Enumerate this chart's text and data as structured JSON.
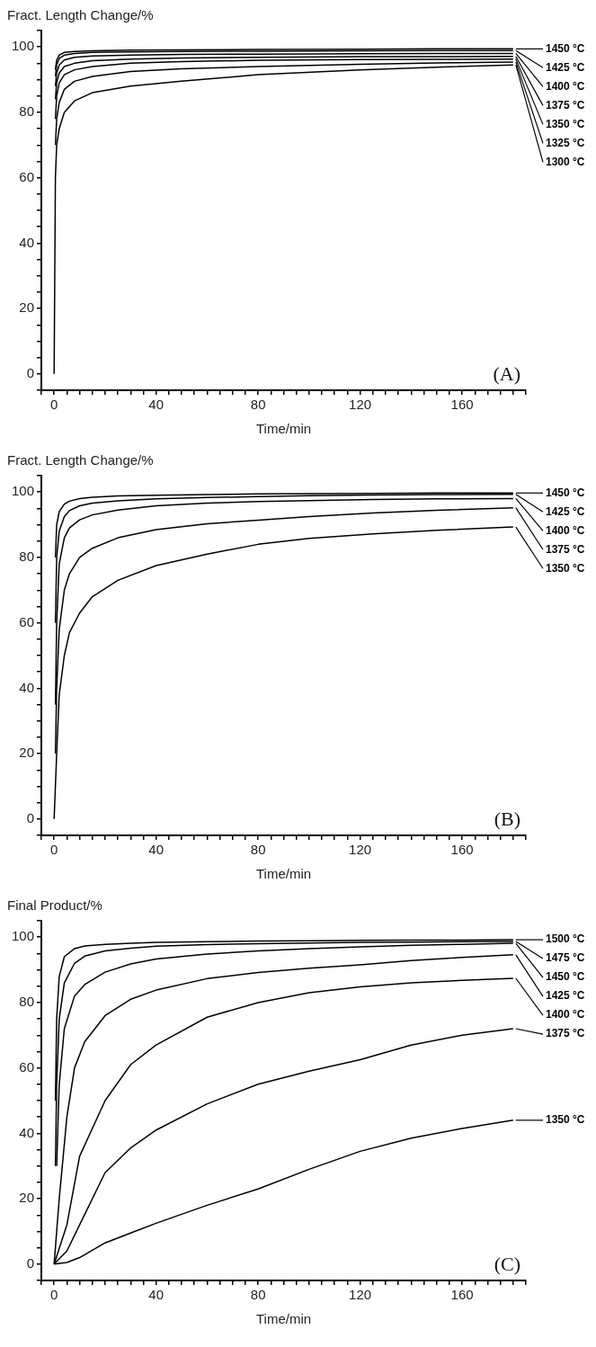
{
  "chart_data": [
    {
      "type": "line",
      "ylabel": "Fract. Length Change/%",
      "xlabel": "Time/min",
      "annotations": [
        "(A)"
      ],
      "xlim": [
        -5,
        185
      ],
      "ylim": [
        -5,
        105
      ],
      "xticks": [
        {
          "value": -5,
          "label": null
        },
        0,
        {
          "value": 5,
          "label": null
        },
        {
          "value": 10,
          "label": null
        },
        {
          "value": 15,
          "label": null
        },
        {
          "value": 20,
          "label": null
        },
        {
          "value": 25,
          "label": null
        },
        {
          "value": 30,
          "label": null
        },
        {
          "value": 35,
          "label": null
        },
        40,
        {
          "value": 45,
          "label": null
        },
        {
          "value": 50,
          "label": null
        },
        {
          "value": 55,
          "label": null
        },
        {
          "value": 60,
          "label": null
        },
        {
          "value": 65,
          "label": null
        },
        {
          "value": 70,
          "label": null
        },
        {
          "value": 75,
          "label": null
        },
        80,
        {
          "value": 85,
          "label": null
        },
        {
          "value": 90,
          "label": null
        },
        {
          "value": 95,
          "label": null
        },
        {
          "value": 100,
          "label": null
        },
        {
          "value": 105,
          "label": null
        },
        {
          "value": 110,
          "label": null
        },
        {
          "value": 115,
          "label": null
        },
        120,
        {
          "value": 125,
          "label": null
        },
        {
          "value": 130,
          "label": null
        },
        {
          "value": 135,
          "label": null
        },
        {
          "value": 140,
          "label": null
        },
        {
          "value": 145,
          "label": null
        },
        {
          "value": 150,
          "label": null
        },
        {
          "value": 155,
          "label": null
        },
        160,
        {
          "value": 165,
          "label": null
        },
        {
          "value": 170,
          "label": null
        },
        {
          "value": 175,
          "label": null
        },
        {
          "value": 180,
          "label": null
        },
        {
          "value": 185,
          "label": null
        }
      ],
      "yticks": [
        {
          "value": -5,
          "label": null
        },
        0,
        {
          "value": 5,
          "label": null
        },
        {
          "value": 10,
          "label": null
        },
        {
          "value": 15,
          "label": null
        },
        20,
        {
          "value": 25,
          "label": null
        },
        {
          "value": 30,
          "label": null
        },
        {
          "value": 35,
          "label": null
        },
        40,
        {
          "value": 45,
          "label": null
        },
        {
          "value": 50,
          "label": null
        },
        {
          "value": 55,
          "label": null
        },
        60,
        {
          "value": 65,
          "label": null
        },
        {
          "value": 70,
          "label": null
        },
        {
          "value": 75,
          "label": null
        },
        80,
        {
          "value": 85,
          "label": null
        },
        {
          "value": 90,
          "label": null
        },
        {
          "value": 95,
          "label": null
        },
        100,
        {
          "value": 105,
          "label": null
        }
      ],
      "grid": false,
      "legend": "right",
      "line_style": "solid",
      "x": [
        0,
        0.5,
        1,
        2,
        4,
        8,
        15,
        30,
        50,
        80,
        120,
        150,
        180
      ],
      "series": [
        {
          "name": "1450 °C",
          "color": "#000000",
          "x": [
            0.5,
            1,
            2,
            4,
            8,
            15,
            30,
            50,
            80,
            120,
            150,
            180
          ],
          "values": [
            93,
            96,
            97.5,
            98.3,
            98.6,
            98.8,
            99,
            99.1,
            99.2,
            99.3,
            99.4,
            99.4
          ]
        },
        {
          "name": "1425 °C",
          "color": "#000000",
          "x": [
            0.5,
            1,
            2,
            4,
            8,
            15,
            30,
            50,
            80,
            120,
            150,
            180
          ],
          "values": [
            91,
            94.5,
            96.5,
            97.5,
            98,
            98.3,
            98.5,
            98.6,
            98.7,
            98.8,
            98.9,
            98.9
          ]
        },
        {
          "name": "1400 °C",
          "color": "#000000",
          "x": [
            0.5,
            1,
            2,
            4,
            8,
            15,
            30,
            50,
            80,
            120,
            150,
            180
          ],
          "values": [
            88,
            92,
            94.5,
            96,
            96.8,
            97.2,
            97.5,
            97.7,
            97.8,
            97.9,
            98,
            98
          ]
        },
        {
          "name": "1375 °C",
          "color": "#000000",
          "x": [
            0.5,
            1,
            2,
            4,
            8,
            15,
            30,
            50,
            80,
            120,
            150,
            180
          ],
          "values": [
            84,
            89,
            92,
            94,
            95,
            95.8,
            96.3,
            96.6,
            96.8,
            97,
            97,
            97.1
          ]
        },
        {
          "name": "1350 °C",
          "color": "#000000",
          "x": [
            0.5,
            1,
            2,
            4,
            8,
            15,
            30,
            50,
            80,
            120,
            150,
            180
          ],
          "values": [
            78,
            85,
            89,
            91.5,
            93,
            94,
            95,
            95.5,
            95.9,
            96.1,
            96.2,
            96.3
          ]
        },
        {
          "name": "1325 °C",
          "color": "#000000",
          "x": [
            0.5,
            1,
            2,
            4,
            8,
            15,
            30,
            50,
            80,
            120,
            150,
            180
          ],
          "values": [
            70,
            78,
            83,
            87,
            89.5,
            91,
            92.5,
            93.3,
            94,
            94.7,
            95.1,
            95.4
          ]
        },
        {
          "name": "1300 °C",
          "color": "#000000",
          "values": [
            0,
            60,
            70,
            75,
            80,
            83.5,
            86,
            88,
            89.5,
            91.5,
            93,
            93.8,
            94.5
          ]
        }
      ]
    },
    {
      "type": "line",
      "ylabel": "Fract. Length Change/%",
      "xlabel": "Time/min",
      "annotations": [
        "(B)"
      ],
      "xlim": [
        -5,
        185
      ],
      "ylim": [
        -5,
        105
      ],
      "xticks": [
        {
          "value": -5,
          "label": null
        },
        0,
        {
          "value": 5,
          "label": null
        },
        {
          "value": 10,
          "label": null
        },
        {
          "value": 15,
          "label": null
        },
        {
          "value": 20,
          "label": null
        },
        {
          "value": 25,
          "label": null
        },
        {
          "value": 30,
          "label": null
        },
        {
          "value": 35,
          "label": null
        },
        40,
        {
          "value": 45,
          "label": null
        },
        {
          "value": 50,
          "label": null
        },
        {
          "value": 55,
          "label": null
        },
        {
          "value": 60,
          "label": null
        },
        {
          "value": 65,
          "label": null
        },
        {
          "value": 70,
          "label": null
        },
        {
          "value": 75,
          "label": null
        },
        80,
        {
          "value": 85,
          "label": null
        },
        {
          "value": 90,
          "label": null
        },
        {
          "value": 95,
          "label": null
        },
        {
          "value": 100,
          "label": null
        },
        {
          "value": 105,
          "label": null
        },
        {
          "value": 110,
          "label": null
        },
        {
          "value": 115,
          "label": null
        },
        120,
        {
          "value": 125,
          "label": null
        },
        {
          "value": 130,
          "label": null
        },
        {
          "value": 135,
          "label": null
        },
        {
          "value": 140,
          "label": null
        },
        {
          "value": 145,
          "label": null
        },
        {
          "value": 150,
          "label": null
        },
        {
          "value": 155,
          "label": null
        },
        160,
        {
          "value": 165,
          "label": null
        },
        {
          "value": 170,
          "label": null
        },
        {
          "value": 175,
          "label": null
        },
        {
          "value": 180,
          "label": null
        },
        {
          "value": 185,
          "label": null
        }
      ],
      "yticks": [
        {
          "value": -5,
          "label": null
        },
        0,
        {
          "value": 5,
          "label": null
        },
        {
          "value": 10,
          "label": null
        },
        {
          "value": 15,
          "label": null
        },
        20,
        {
          "value": 25,
          "label": null
        },
        {
          "value": 30,
          "label": null
        },
        {
          "value": 35,
          "label": null
        },
        40,
        {
          "value": 45,
          "label": null
        },
        {
          "value": 50,
          "label": null
        },
        {
          "value": 55,
          "label": null
        },
        60,
        {
          "value": 65,
          "label": null
        },
        {
          "value": 70,
          "label": null
        },
        {
          "value": 75,
          "label": null
        },
        80,
        {
          "value": 85,
          "label": null
        },
        {
          "value": 90,
          "label": null
        },
        {
          "value": 95,
          "label": null
        },
        100,
        {
          "value": 105,
          "label": null
        }
      ],
      "grid": false,
      "legend": "right",
      "line_style": "solid",
      "x": [
        0,
        0.5,
        1,
        2,
        4,
        6,
        10,
        15,
        25,
        40,
        60,
        80,
        100,
        125,
        150,
        180
      ],
      "series": [
        {
          "name": "1450 °C",
          "color": "#000000",
          "x": [
            0.5,
            1,
            2,
            4,
            6,
            10,
            15,
            25,
            40,
            60,
            80,
            100,
            125,
            150,
            180
          ],
          "values": [
            80,
            90,
            94,
            96.3,
            97.2,
            98,
            98.4,
            98.8,
            99,
            99.2,
            99.4,
            99.5,
            99.6,
            99.7,
            99.7
          ]
        },
        {
          "name": "1425 °C",
          "color": "#000000",
          "x": [
            0.5,
            1,
            2,
            4,
            6,
            10,
            15,
            25,
            40,
            60,
            80,
            100,
            125,
            150,
            180
          ],
          "values": [
            60,
            80,
            88,
            92.5,
            94.3,
            95.8,
            96.6,
            97.3,
            97.9,
            98.3,
            98.6,
            98.9,
            99.1,
            99.2,
            99.3
          ]
        },
        {
          "name": "1400 °C",
          "color": "#000000",
          "x": [
            0.5,
            1,
            2,
            4,
            6,
            10,
            15,
            25,
            40,
            60,
            80,
            100,
            125,
            150,
            180
          ],
          "values": [
            35,
            60,
            78,
            86,
            89,
            91.5,
            93,
            94.5,
            95.8,
            96.6,
            97.1,
            97.4,
            97.7,
            97.9,
            98
          ]
        },
        {
          "name": "1375 °C",
          "color": "#000000",
          "x": [
            0.5,
            1,
            2,
            4,
            6,
            10,
            15,
            25,
            40,
            60,
            80,
            100,
            125,
            150,
            180
          ],
          "values": [
            20,
            40,
            58,
            70,
            75,
            80,
            82.8,
            86,
            88.5,
            90.3,
            91.4,
            92.5,
            93.6,
            94.4,
            95.2
          ]
        },
        {
          "name": "1350 °C",
          "color": "#000000",
          "values": [
            0,
            10,
            20,
            38,
            50,
            57,
            63,
            68,
            73,
            77.5,
            81,
            84,
            85.8,
            87.2,
            88.3,
            89.3
          ]
        }
      ]
    },
    {
      "type": "line",
      "ylabel": "Final Product/%",
      "xlabel": "Time/min",
      "annotations": [
        "(C)"
      ],
      "xlim": [
        -5,
        185
      ],
      "ylim": [
        -5,
        105
      ],
      "xticks": [
        {
          "value": -5,
          "label": null
        },
        0,
        {
          "value": 5,
          "label": null
        },
        {
          "value": 10,
          "label": null
        },
        {
          "value": 15,
          "label": null
        },
        {
          "value": 20,
          "label": null
        },
        {
          "value": 25,
          "label": null
        },
        {
          "value": 30,
          "label": null
        },
        {
          "value": 35,
          "label": null
        },
        40,
        {
          "value": 45,
          "label": null
        },
        {
          "value": 50,
          "label": null
        },
        {
          "value": 55,
          "label": null
        },
        {
          "value": 60,
          "label": null
        },
        {
          "value": 65,
          "label": null
        },
        {
          "value": 70,
          "label": null
        },
        {
          "value": 75,
          "label": null
        },
        80,
        {
          "value": 85,
          "label": null
        },
        {
          "value": 90,
          "label": null
        },
        {
          "value": 95,
          "label": null
        },
        {
          "value": 100,
          "label": null
        },
        {
          "value": 105,
          "label": null
        },
        {
          "value": 110,
          "label": null
        },
        {
          "value": 115,
          "label": null
        },
        120,
        {
          "value": 125,
          "label": null
        },
        {
          "value": 130,
          "label": null
        },
        {
          "value": 135,
          "label": null
        },
        {
          "value": 140,
          "label": null
        },
        {
          "value": 145,
          "label": null
        },
        {
          "value": 150,
          "label": null
        },
        {
          "value": 155,
          "label": null
        },
        160,
        {
          "value": 165,
          "label": null
        },
        {
          "value": 170,
          "label": null
        },
        {
          "value": 175,
          "label": null
        },
        {
          "value": 180,
          "label": null
        },
        {
          "value": 185,
          "label": null
        }
      ],
      "yticks": [
        {
          "value": -5,
          "label": null
        },
        0,
        {
          "value": 5,
          "label": null
        },
        {
          "value": 10,
          "label": null
        },
        {
          "value": 15,
          "label": null
        },
        20,
        {
          "value": 25,
          "label": null
        },
        {
          "value": 30,
          "label": null
        },
        {
          "value": 35,
          "label": null
        },
        40,
        {
          "value": 45,
          "label": null
        },
        {
          "value": 50,
          "label": null
        },
        {
          "value": 55,
          "label": null
        },
        60,
        {
          "value": 65,
          "label": null
        },
        {
          "value": 70,
          "label": null
        },
        {
          "value": 75,
          "label": null
        },
        80,
        {
          "value": 85,
          "label": null
        },
        {
          "value": 90,
          "label": null
        },
        {
          "value": 95,
          "label": null
        },
        100,
        {
          "value": 105,
          "label": null
        }
      ],
      "grid": false,
      "legend": "right",
      "line_style": "solid",
      "series": [
        {
          "name": "1500 °C",
          "color": "#000000",
          "x": [
            0.5,
            1,
            2,
            4,
            8,
            12,
            20,
            30,
            40,
            60,
            80,
            100,
            120,
            140,
            160,
            180
          ],
          "values": [
            50,
            75,
            88,
            94,
            96.5,
            97.3,
            97.8,
            98.1,
            98.4,
            98.6,
            98.8,
            98.9,
            99,
            99.1,
            99.1,
            99.2
          ]
        },
        {
          "name": "1475 °C",
          "color": "#000000",
          "x": [
            0.5,
            1,
            2,
            4,
            8,
            12,
            20,
            30,
            40,
            60,
            80,
            100,
            120,
            140,
            160,
            180
          ],
          "values": [
            30,
            55,
            75,
            86,
            92,
            94.2,
            95.8,
            96.6,
            97.2,
            97.7,
            98,
            98.2,
            98.4,
            98.5,
            98.6,
            98.7
          ]
        },
        {
          "name": "1450 °C",
          "color": "#000000",
          "x": [
            1,
            2,
            4,
            8,
            12,
            20,
            30,
            40,
            60,
            80,
            100,
            120,
            140,
            160,
            180
          ],
          "values": [
            30,
            55,
            72,
            82,
            85.5,
            89.3,
            91.8,
            93.3,
            94.8,
            95.8,
            96.5,
            97,
            97.5,
            97.8,
            98.1
          ]
        },
        {
          "name": "1425 °C",
          "color": "#000000",
          "x": [
            0,
            2,
            5,
            8,
            12,
            20,
            30,
            40,
            60,
            80,
            100,
            120,
            140,
            160,
            180
          ],
          "values": [
            0,
            20,
            45,
            60,
            68,
            76,
            81,
            83.8,
            87.3,
            89.2,
            90.5,
            91.5,
            92.8,
            93.8,
            94.6
          ]
        },
        {
          "name": "1400 °C",
          "color": "#000000",
          "x": [
            0,
            5,
            10,
            20,
            30,
            40,
            60,
            80,
            100,
            120,
            140,
            160,
            180
          ],
          "values": [
            0,
            12,
            33,
            50,
            61,
            67,
            75.5,
            80,
            83,
            84.8,
            86,
            86.8,
            87.4
          ]
        },
        {
          "name": "1375 °C",
          "color": "#000000",
          "x": [
            0,
            5,
            10,
            20,
            30,
            40,
            60,
            80,
            100,
            120,
            140,
            160,
            180
          ],
          "values": [
            0,
            4,
            12,
            28,
            35.5,
            41,
            49,
            55,
            59,
            62.5,
            67,
            70,
            72
          ]
        },
        {
          "name": "1350 °C",
          "color": "#000000",
          "x": [
            0,
            5,
            10,
            20,
            30,
            40,
            60,
            80,
            100,
            120,
            140,
            160,
            180
          ],
          "values": [
            0,
            0.5,
            2,
            6.5,
            9.5,
            12.5,
            18,
            23,
            29,
            34.5,
            38.5,
            41.5,
            44
          ]
        }
      ]
    }
  ]
}
